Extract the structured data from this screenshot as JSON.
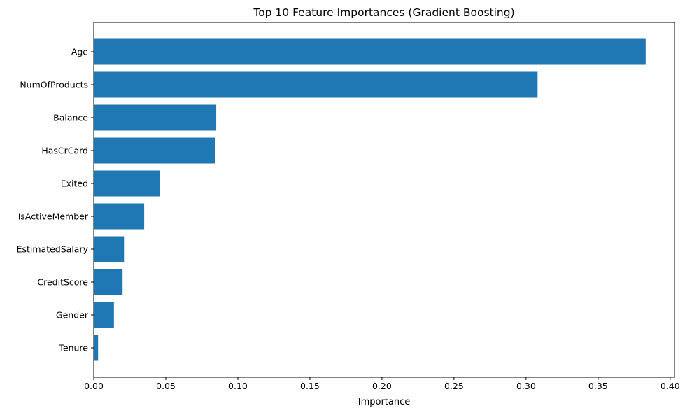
{
  "chart_data": {
    "type": "bar",
    "orientation": "horizontal",
    "title": "Top 10 Feature Importances (Gradient Boosting)",
    "xlabel": "Importance",
    "ylabel": "",
    "categories": [
      "Age",
      "NumOfProducts",
      "Balance",
      "HasCrCard",
      "Exited",
      "IsActiveMember",
      "EstimatedSalary",
      "CreditScore",
      "Gender",
      "Tenure"
    ],
    "values": [
      0.383,
      0.308,
      0.085,
      0.084,
      0.046,
      0.035,
      0.021,
      0.02,
      0.014,
      0.003
    ],
    "xlim": [
      0,
      0.403
    ],
    "x_ticks": [
      0.0,
      0.05,
      0.1,
      0.15,
      0.2,
      0.25,
      0.3,
      0.35,
      0.4
    ],
    "x_tick_labels": [
      "0.00",
      "0.05",
      "0.10",
      "0.15",
      "0.20",
      "0.25",
      "0.30",
      "0.35",
      "0.40"
    ],
    "bar_color": "#1f77b4",
    "grid": false,
    "legend": "none"
  }
}
